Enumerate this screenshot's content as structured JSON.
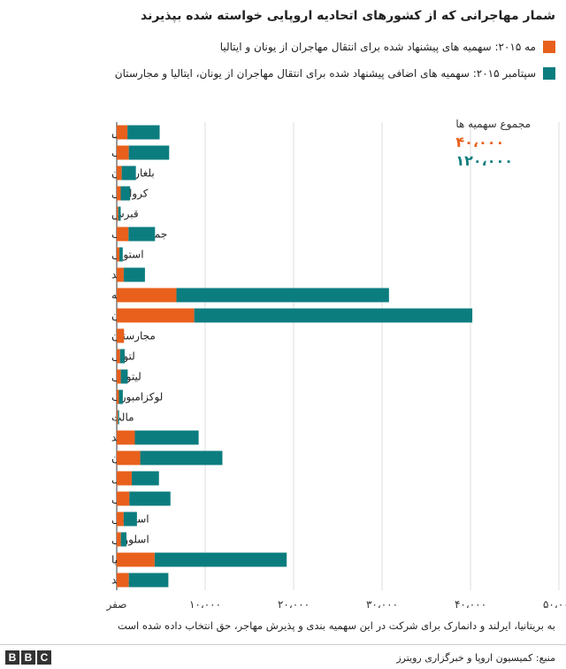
{
  "title": "شمار مهاجرانی که از کشورهای اتحادیه اروپایی خواسته شده بپذیرند",
  "totals": {
    "label": "مجموع سهمیه ها",
    "may": "۴۰،۰۰۰",
    "sept": "۱۲۰،۰۰۰"
  },
  "note": "به بریتانیا، ایرلند و دانمارک برای شرکت در این سهمیه بندی و پذیرش مهاجر، حق انتخاب داده شده است",
  "source": "منبع: کمیسیون اروپا و خبرگزاری رویترز",
  "bbc_letters": [
    "B",
    "B",
    "C"
  ],
  "colors": {
    "may": "#e8601c",
    "sept": "#0c7d7f"
  },
  "chart_data": {
    "type": "bar",
    "orientation": "horizontal",
    "stacked": true,
    "categories": [
      "اتریش",
      "بلژیک",
      "بلغارستان",
      "کرواسی",
      "قبرس",
      "جمهوری چک",
      "استونی",
      "فنلاند",
      "فرانسه",
      "آلمان",
      "مجارستان",
      "لتونی",
      "لیتوانی",
      "لوکزامبورگ",
      "مالت",
      "هلند",
      "لهستان",
      "پرتغال",
      "رومانی",
      "اسلواکی",
      "اسلوونی",
      "اسپانیا",
      "سوئد"
    ],
    "series": [
      {
        "name": "مه ۲۰۱۵: سهمیه های پیشنهاد شده برای انتقال مهاجران از یونان و ایتالیا",
        "values": [
          1213,
          1364,
          564,
          449,
          173,
          1328,
          307,
          792,
          6752,
          8763,
          827,
          373,
          459,
          248,
          133,
          2047,
          2659,
          1701,
          1428,
          785,
          469,
          4288,
          1369
        ]
      },
      {
        "name": "سپتامبر ۲۰۱۵: سهمیه های اضافی پیشنهاد شده برای انتقال مهاجران از یونان، ایتالیا و مجارستان",
        "values": [
          3640,
          4564,
          1600,
          1064,
          274,
          3000,
          373,
          2398,
          24031,
          31443,
          0,
          526,
          780,
          440,
          133,
          7214,
          9287,
          3074,
          4646,
          1502,
          631,
          14931,
          4469
        ]
      }
    ],
    "xlim": [
      0,
      50000
    ],
    "xticks": [
      0,
      10000,
      20000,
      30000,
      40000,
      50000
    ],
    "xtick_labels": [
      "صفر",
      "۱۰،۰۰۰",
      "۲۰،۰۰۰",
      "۳۰،۰۰۰",
      "۴۰،۰۰۰",
      "۵۰،۰۰۰"
    ],
    "grid": true,
    "legend": "top"
  }
}
